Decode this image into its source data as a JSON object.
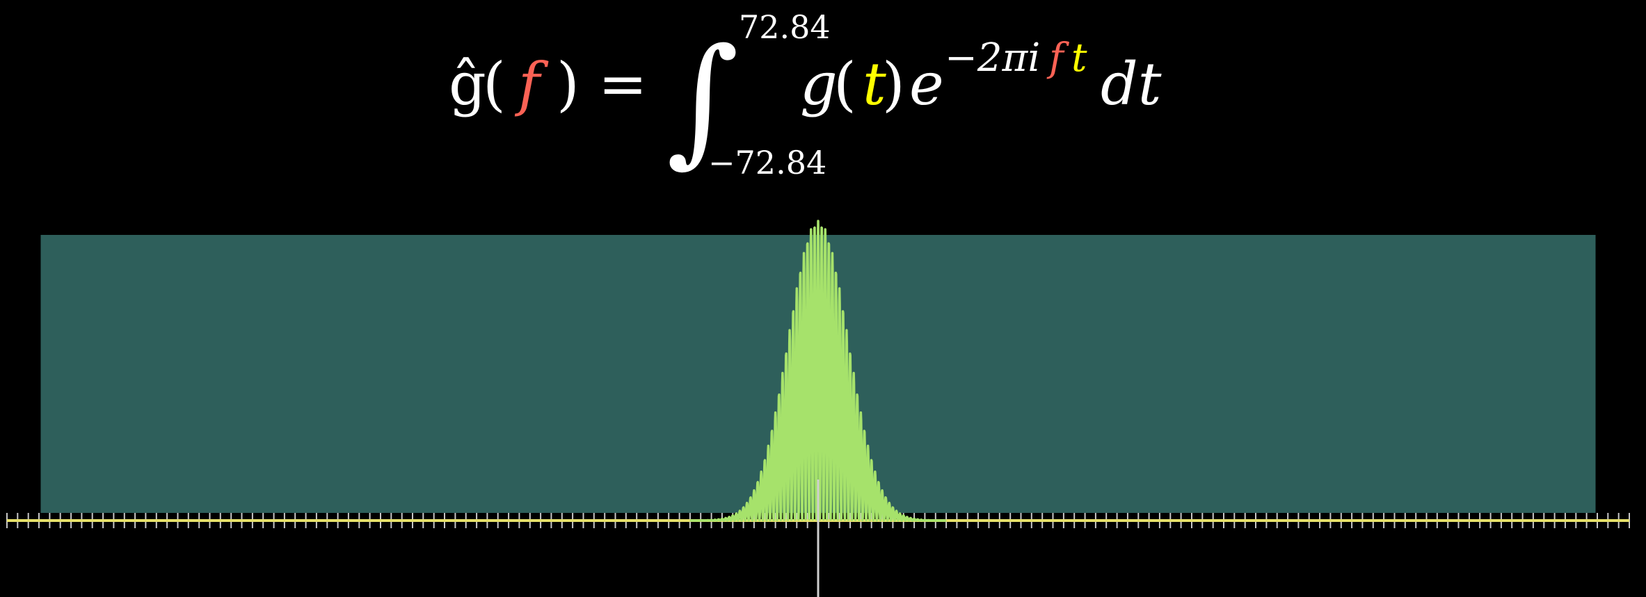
{
  "formula": {
    "lhs_func": "ĝ",
    "lhs_open": "(",
    "lhs_var": "f",
    "lhs_close": ")",
    "equals": "=",
    "integral_sign": "∫",
    "upper_limit": "72.84",
    "lower_limit": "−72.84",
    "integrand_func": "g",
    "integrand_open": "(",
    "integrand_var": "t",
    "integrand_close": ")",
    "exp_base": "e",
    "exp_prefix": "−2πi",
    "exp_f": "f",
    "exp_t": "t",
    "differential": "dt"
  },
  "colors": {
    "background": "#000000",
    "text": "#ffffff",
    "frequency_var": "#fc6255",
    "time_var": "#ffff00",
    "window_fill": "#2e5f5b",
    "signal": "#a6e26b",
    "axis": "#e6e06a",
    "ticks": "#c7c7c7",
    "center_line": "#cfcfcf"
  },
  "graph": {
    "window_range": [
      -72.84,
      72.84
    ],
    "axis_range": [
      -76,
      76
    ],
    "tick_spacing": 1,
    "signal": {
      "description_type": "wave_packet",
      "center": 0,
      "peak_amplitude": 1,
      "envelope_width": 2.8,
      "oscillation_frequency": 3,
      "samples": 900
    }
  }
}
